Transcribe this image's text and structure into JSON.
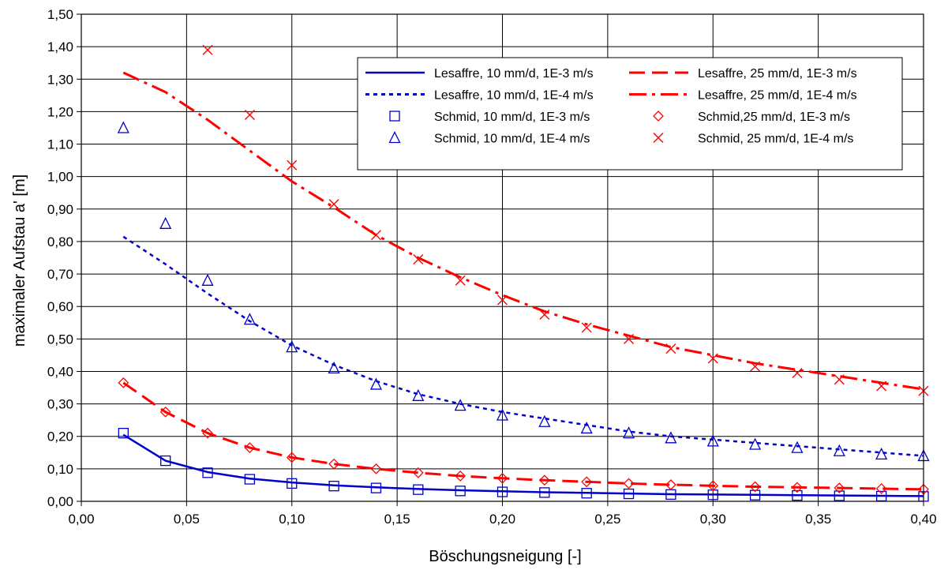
{
  "chart_data": {
    "type": "line",
    "title": "",
    "xlabel": "Böschungsneigung [-]",
    "ylabel": "maximaler Aufstau a' [m]",
    "xlim": [
      0,
      0.4
    ],
    "ylim": [
      0,
      1.5
    ],
    "x_ticks": [
      "0,00",
      "0,05",
      "0,10",
      "0,15",
      "0,20",
      "0,25",
      "0,30",
      "0,35",
      "0,40"
    ],
    "y_ticks": [
      "0,00",
      "0,10",
      "0,20",
      "0,30",
      "0,40",
      "0,50",
      "0,60",
      "0,70",
      "0,80",
      "0,90",
      "1,00",
      "1,10",
      "1,20",
      "1,30",
      "1,40",
      "1,50"
    ],
    "grid": true,
    "legend_position": "top-right",
    "series": [
      {
        "name": "Lesaffre, 10 mm/d, 1E-3 m/s",
        "style": "solid",
        "color": "#0000CC",
        "x": [
          0.02,
          0.04,
          0.06,
          0.08,
          0.1,
          0.12,
          0.14,
          0.16,
          0.18,
          0.2,
          0.22,
          0.24,
          0.26,
          0.28,
          0.3,
          0.32,
          0.34,
          0.36,
          0.38,
          0.4
        ],
        "y": [
          0.205,
          0.125,
          0.09,
          0.07,
          0.058,
          0.049,
          0.043,
          0.038,
          0.034,
          0.031,
          0.028,
          0.026,
          0.024,
          0.022,
          0.021,
          0.02,
          0.019,
          0.018,
          0.017,
          0.016
        ]
      },
      {
        "name": "Lesaffre, 10 mm/d, 1E-4 m/s",
        "style": "dotted",
        "color": "#0000CC",
        "x": [
          0.02,
          0.04,
          0.06,
          0.08,
          0.1,
          0.12,
          0.14,
          0.16,
          0.18,
          0.2,
          0.22,
          0.24,
          0.26,
          0.28,
          0.3,
          0.32,
          0.34,
          0.36,
          0.38,
          0.4
        ],
        "y": [
          0.815,
          0.73,
          0.64,
          0.555,
          0.48,
          0.42,
          0.37,
          0.33,
          0.3,
          0.275,
          0.255,
          0.235,
          0.215,
          0.2,
          0.19,
          0.18,
          0.17,
          0.16,
          0.15,
          0.14
        ]
      },
      {
        "name": "Schmid, 10 mm/d, 1E-3 m/s",
        "style": "marker",
        "marker": "square",
        "color": "#0000CC",
        "x": [
          0.02,
          0.04,
          0.06,
          0.08,
          0.1,
          0.12,
          0.14,
          0.16,
          0.18,
          0.2,
          0.22,
          0.24,
          0.26,
          0.28,
          0.3,
          0.32,
          0.34,
          0.36,
          0.38,
          0.4
        ],
        "y": [
          0.21,
          0.125,
          0.088,
          0.068,
          0.055,
          0.047,
          0.041,
          0.036,
          0.032,
          0.029,
          0.027,
          0.025,
          0.023,
          0.021,
          0.02,
          0.019,
          0.018,
          0.017,
          0.016,
          0.015
        ]
      },
      {
        "name": "Schmid, 10 mm/d, 1E-4 m/s",
        "style": "marker",
        "marker": "triangle",
        "color": "#0000CC",
        "x": [
          0.02,
          0.04,
          0.06,
          0.08,
          0.1,
          0.12,
          0.14,
          0.16,
          0.18,
          0.2,
          0.22,
          0.24,
          0.26,
          0.28,
          0.3,
          0.32,
          0.34,
          0.36,
          0.38,
          0.4
        ],
        "y": [
          1.15,
          0.855,
          0.68,
          0.56,
          0.475,
          0.41,
          0.36,
          0.325,
          0.295,
          0.265,
          0.245,
          0.225,
          0.21,
          0.195,
          0.185,
          0.175,
          0.165,
          0.155,
          0.145,
          0.14
        ]
      },
      {
        "name": "Lesaffre, 25 mm/d, 1E-3 m/s",
        "style": "dashed",
        "color": "#FF0000",
        "x": [
          0.02,
          0.04,
          0.06,
          0.08,
          0.1,
          0.12,
          0.14,
          0.16,
          0.18,
          0.2,
          0.22,
          0.24,
          0.26,
          0.28,
          0.3,
          0.32,
          0.34,
          0.36,
          0.38,
          0.4
        ],
        "y": [
          0.365,
          0.275,
          0.21,
          0.165,
          0.135,
          0.115,
          0.1,
          0.088,
          0.078,
          0.071,
          0.065,
          0.06,
          0.055,
          0.051,
          0.048,
          0.045,
          0.043,
          0.041,
          0.039,
          0.037
        ]
      },
      {
        "name": "Lesaffre, 25 mm/d, 1E-4 m/s",
        "style": "dashdot",
        "color": "#FF0000",
        "x": [
          0.02,
          0.04,
          0.06,
          0.08,
          0.1,
          0.12,
          0.14,
          0.16,
          0.18,
          0.2,
          0.22,
          0.24,
          0.26,
          0.28,
          0.3,
          0.32,
          0.34,
          0.36,
          0.38,
          0.4
        ],
        "y": [
          1.32,
          1.26,
          1.175,
          1.08,
          0.985,
          0.905,
          0.82,
          0.75,
          0.69,
          0.635,
          0.585,
          0.545,
          0.51,
          0.475,
          0.45,
          0.425,
          0.405,
          0.385,
          0.365,
          0.345
        ]
      },
      {
        "name": "Schmid,25 mm/d, 1E-3 m/s",
        "style": "marker",
        "marker": "diamond",
        "color": "#FF0000",
        "x": [
          0.02,
          0.04,
          0.06,
          0.08,
          0.1,
          0.12,
          0.14,
          0.16,
          0.18,
          0.2,
          0.22,
          0.24,
          0.26,
          0.28,
          0.3,
          0.32,
          0.34,
          0.36,
          0.38,
          0.4
        ],
        "y": [
          0.365,
          0.275,
          0.21,
          0.165,
          0.135,
          0.115,
          0.1,
          0.088,
          0.078,
          0.071,
          0.065,
          0.06,
          0.055,
          0.051,
          0.048,
          0.045,
          0.043,
          0.041,
          0.039,
          0.037
        ]
      },
      {
        "name": "Schmid, 25 mm/d, 1E-4 m/s",
        "style": "marker",
        "marker": "x",
        "color": "#FF0000",
        "x": [
          0.06,
          0.08,
          0.1,
          0.12,
          0.14,
          0.16,
          0.18,
          0.2,
          0.22,
          0.24,
          0.26,
          0.28,
          0.3,
          0.32,
          0.34,
          0.36,
          0.38,
          0.4
        ],
        "y": [
          1.39,
          1.19,
          1.035,
          0.915,
          0.82,
          0.745,
          0.68,
          0.62,
          0.575,
          0.535,
          0.5,
          0.47,
          0.44,
          0.415,
          0.395,
          0.375,
          0.355,
          0.34
        ]
      }
    ],
    "legend_order": [
      0,
      4,
      1,
      5,
      2,
      6,
      3,
      7
    ]
  }
}
